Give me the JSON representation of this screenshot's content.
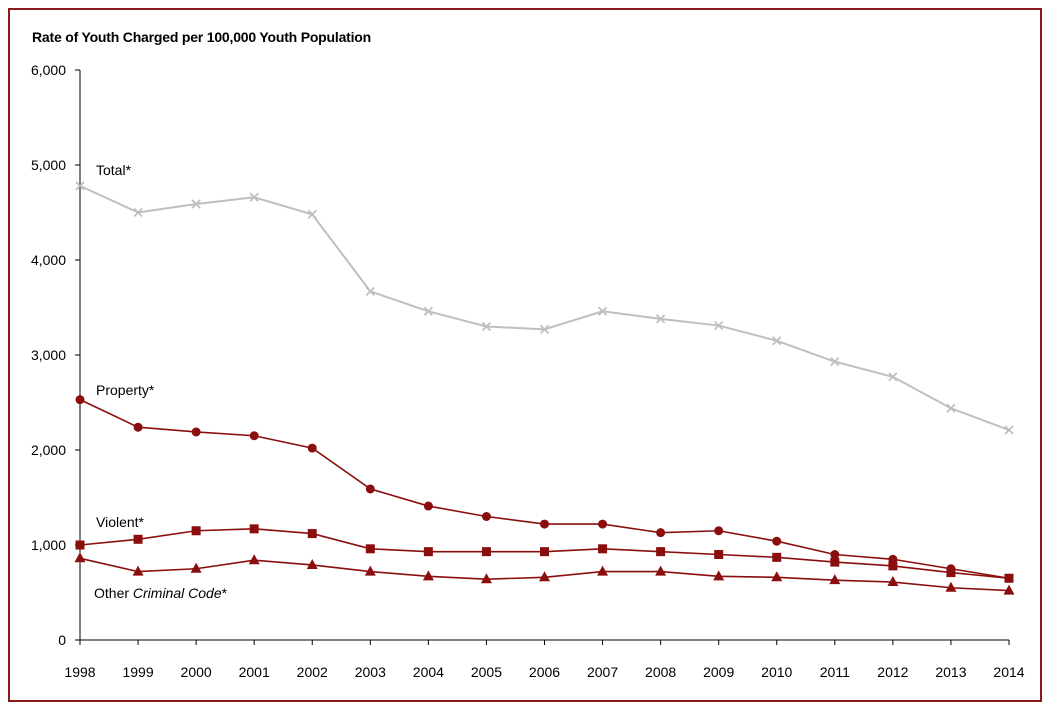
{
  "chart_data": {
    "type": "line",
    "title": "Rate of Youth Charged per 100,000 Youth Population",
    "xlabel": "",
    "ylabel": "",
    "ylim": [
      0,
      6000
    ],
    "yticks": [
      "0",
      "1,000",
      "2,000",
      "3,000",
      "4,000",
      "5,000",
      "6,000"
    ],
    "grid": false,
    "legend": "inline labels at left of each line",
    "x": [
      1998,
      1999,
      2000,
      2001,
      2002,
      2003,
      2004,
      2005,
      2006,
      2007,
      2008,
      2009,
      2010,
      2011,
      2012,
      2013,
      2014
    ],
    "series": [
      {
        "name": "Total*",
        "name_parts": [
          "Total*",
          "",
          ""
        ],
        "color": "#bfbfbf",
        "marker": "x",
        "values": [
          4780,
          4500,
          4590,
          4660,
          4480,
          3670,
          3460,
          3300,
          3270,
          3460,
          3380,
          3310,
          3150,
          2930,
          2770,
          2440,
          2210
        ]
      },
      {
        "name": "Property*",
        "name_parts": [
          "Property*",
          "",
          ""
        ],
        "color": "#8b0e0e",
        "marker": "circle",
        "values": [
          2530,
          2240,
          2190,
          2150,
          2020,
          1590,
          1410,
          1300,
          1220,
          1220,
          1130,
          1150,
          1040,
          900,
          850,
          750,
          650
        ]
      },
      {
        "name": "Violent*",
        "name_parts": [
          "Violent*",
          "",
          ""
        ],
        "color": "#8b0e0e",
        "marker": "square",
        "values": [
          1000,
          1060,
          1150,
          1170,
          1120,
          960,
          930,
          930,
          930,
          960,
          930,
          900,
          870,
          820,
          780,
          710,
          650
        ]
      },
      {
        "name": "Other Criminal Code*",
        "name_parts": [
          "Other ",
          "Criminal Code",
          "*"
        ],
        "color": "#8b0e0e",
        "marker": "triangle",
        "values": [
          860,
          720,
          750,
          840,
          790,
          720,
          670,
          640,
          660,
          720,
          720,
          670,
          660,
          630,
          610,
          550,
          520
        ]
      }
    ]
  }
}
